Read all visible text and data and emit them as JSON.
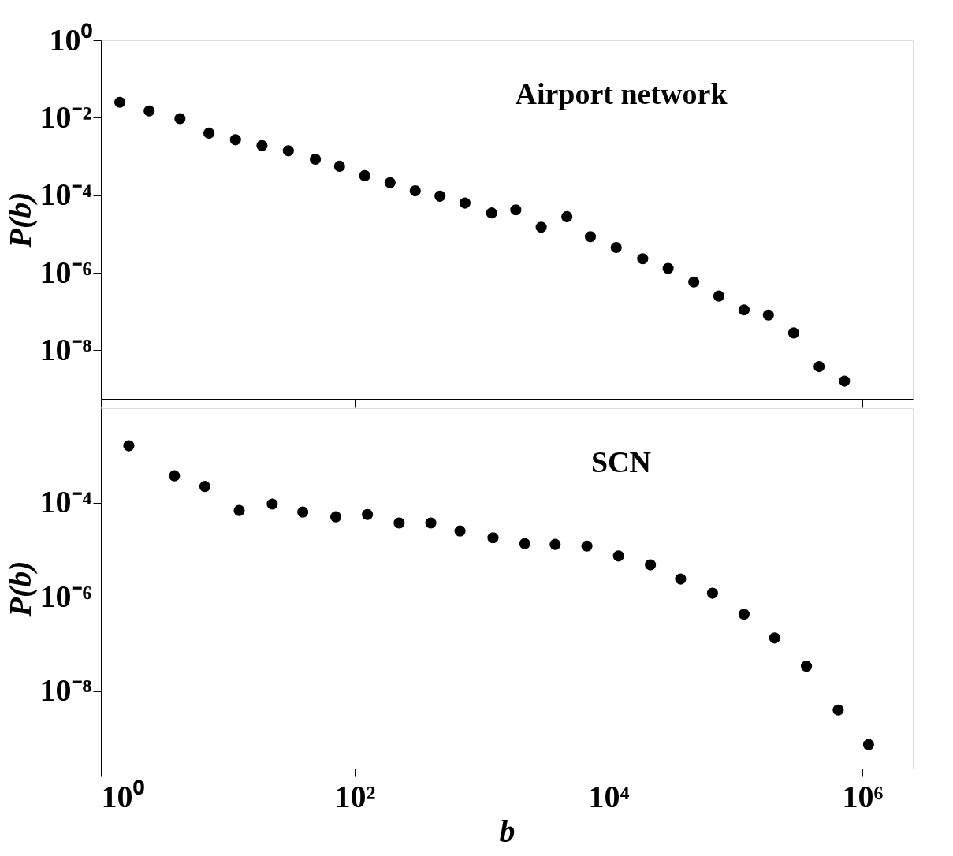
{
  "chart_data": [
    {
      "type": "scatter",
      "ylabel": "P(b)",
      "annotations": [
        "Airport network"
      ],
      "log": "xy",
      "marker": "circle",
      "tick_labels": "y",
      "grid": false,
      "legend": false,
      "xlim": [
        1,
        2500000
      ],
      "xticks": [
        {
          "value": 1,
          "label": null
        },
        {
          "value": 100,
          "label": null
        },
        {
          "value": 10000,
          "label": null
        },
        {
          "value": 1000000,
          "label": null
        }
      ],
      "ylim": [
        5.6e-10,
        1
      ],
      "yticks": [
        {
          "value": 1,
          "label": "10⁰"
        },
        {
          "value": 0.01,
          "label": "10⁻²"
        },
        {
          "value": 0.0001,
          "label": "10⁻⁴"
        },
        {
          "value": 1e-06,
          "label": "10⁻⁶"
        },
        {
          "value": 1e-08,
          "label": "10⁻⁸"
        }
      ],
      "series": [
        {
          "color": "#000000",
          "x": [
            1.41,
            2.4,
            4.2,
            7.1,
            11.5,
            18.6,
            30,
            49,
            76,
            120,
            190,
            300,
            470,
            740,
            1200,
            1860,
            2950,
            4700,
            7200,
            11500,
            18600,
            29500,
            47000,
            74000,
            117000,
            182000,
            288000,
            457000,
            724000
          ],
          "values": [
            0.025,
            0.015,
            0.0095,
            0.004,
            0.0027,
            0.0019,
            0.0014,
            0.00085,
            0.00056,
            0.00032,
            0.00021,
            0.00013,
            9.5e-05,
            6.3e-05,
            3.5e-05,
            4.2e-05,
            1.5e-05,
            2.8e-05,
            8.5e-06,
            4.5e-06,
            2.3e-06,
            1.3e-06,
            5.8e-07,
            2.5e-07,
            1.1e-07,
            8.1e-08,
            2.8e-08,
            3.8e-09,
            1.6e-09
          ]
        }
      ]
    },
    {
      "type": "scatter",
      "xlabel": "b",
      "ylabel": "P(b)",
      "annotations": [
        "SCN"
      ],
      "log": "xy",
      "marker": "circle",
      "grid": false,
      "legend": false,
      "xlim": [
        1,
        2500000
      ],
      "xticks": [
        {
          "value": 1,
          "label": "10⁰"
        },
        {
          "value": 100,
          "label": "10²"
        },
        {
          "value": 10000,
          "label": "10⁴"
        },
        {
          "value": 1000000,
          "label": "10⁶"
        }
      ],
      "ylim": [
        2.3e-10,
        0.01
      ],
      "yticks": [
        {
          "value": 0.0001,
          "label": "10⁻⁴"
        },
        {
          "value": 1e-06,
          "label": "10⁻⁶"
        },
        {
          "value": 1e-08,
          "label": "10⁻⁸"
        }
      ],
      "series": [
        {
          "color": "#000000",
          "x": [
            1.66,
            3.8,
            6.6,
            12.3,
            22.4,
            39,
            71,
            126,
            224,
            398,
            676,
            1230,
            2190,
            3800,
            6760,
            12000,
            21400,
            37000,
            66000,
            117000,
            204000,
            363000,
            646000,
            1120000
          ],
          "values": [
            0.0016,
            0.00037,
            0.00022,
            6.8e-05,
            9.3e-05,
            6.3e-05,
            5e-05,
            5.6e-05,
            3.7e-05,
            3.7e-05,
            2.5e-05,
            1.8e-05,
            1.35e-05,
            1.3e-05,
            1.2e-05,
            7.4e-06,
            4.8e-06,
            2.4e-06,
            1.2e-06,
            4.3e-07,
            1.35e-07,
            3.4e-08,
            4e-09,
            7.4e-10
          ]
        }
      ]
    }
  ]
}
